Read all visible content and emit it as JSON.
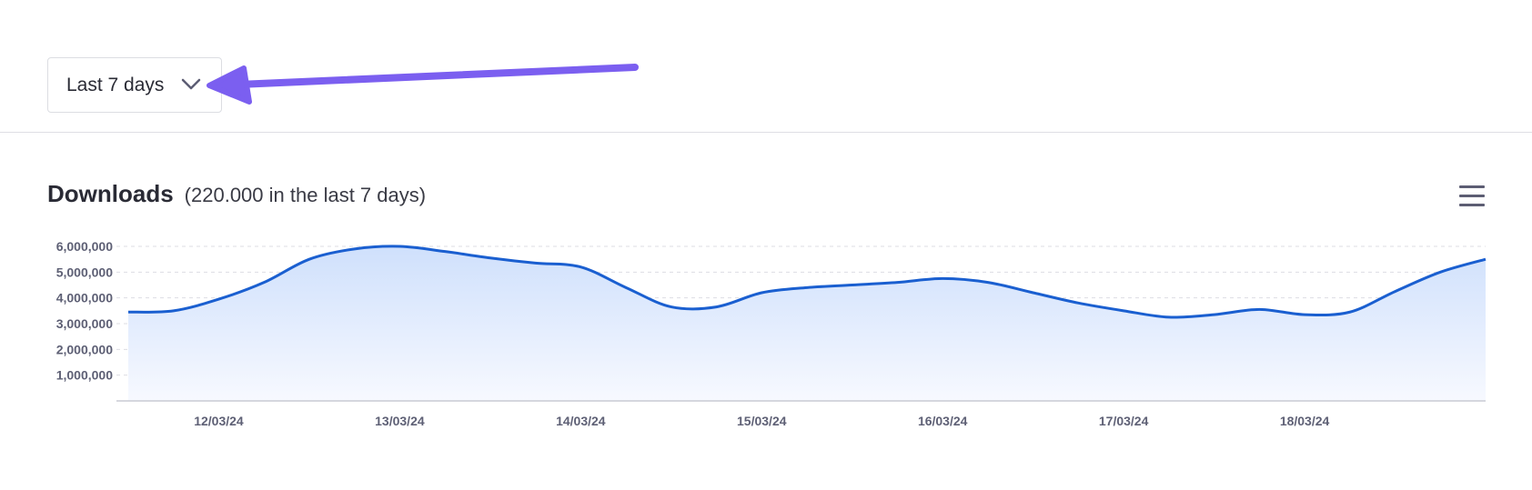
{
  "filter": {
    "selected": "Last 7 days",
    "chevron_icon": "chevron-down-icon"
  },
  "header": {
    "title": "Downloads",
    "subtitle": "(220.000 in the last 7 days)",
    "menu_icon": "hamburger-menu-icon"
  },
  "colors": {
    "line": "#1a5fd0",
    "area_top": "#cfe0fc",
    "area_bottom": "#f7f9ff",
    "arrow": "#7b5ff0",
    "grid": "#dddde3"
  },
  "chart_data": {
    "type": "area",
    "title": "Downloads",
    "x": [
      "11/03/24 12:00",
      "11/03/24 18:00",
      "12/03/24 00:00",
      "12/03/24 06:00",
      "12/03/24 12:00",
      "12/03/24 18:00",
      "13/03/24 00:00",
      "13/03/24 06:00",
      "13/03/24 12:00",
      "13/03/24 18:00",
      "14/03/24 00:00",
      "14/03/24 06:00",
      "14/03/24 12:00",
      "14/03/24 18:00",
      "15/03/24 00:00",
      "15/03/24 06:00",
      "15/03/24 12:00",
      "15/03/24 18:00",
      "16/03/24 00:00",
      "16/03/24 06:00",
      "16/03/24 12:00",
      "16/03/24 18:00",
      "17/03/24 00:00",
      "17/03/24 06:00",
      "17/03/24 12:00",
      "17/03/24 18:00",
      "18/03/24 00:00",
      "18/03/24 06:00",
      "18/03/24 12:00",
      "18/03/24 18:00",
      "19/03/24 00:00"
    ],
    "series": [
      {
        "values": [
          3450000,
          3500000,
          3950000,
          4600000,
          5500000,
          5900000,
          6000000,
          5800000,
          5550000,
          5350000,
          5200000,
          4400000,
          3650000,
          3650000,
          4200000,
          4400000,
          4500000,
          4600000,
          4750000,
          4600000,
          4200000,
          3800000,
          3500000,
          3250000,
          3350000,
          3550000,
          3350000,
          3450000,
          4250000,
          5000000,
          5500000
        ]
      }
    ],
    "x_tick_labels": [
      "12/03/24",
      "13/03/24",
      "14/03/24",
      "15/03/24",
      "16/03/24",
      "17/03/24",
      "18/03/24"
    ],
    "y_tick_labels": [
      "1,000,000",
      "2,000,000",
      "3,000,000",
      "4,000,000",
      "5,000,000",
      "6,000,000"
    ],
    "y_ticks": [
      1000000,
      2000000,
      3000000,
      4000000,
      5000000,
      6000000
    ],
    "ylim": [
      0,
      6000000
    ],
    "grid": true,
    "legend": "none"
  }
}
